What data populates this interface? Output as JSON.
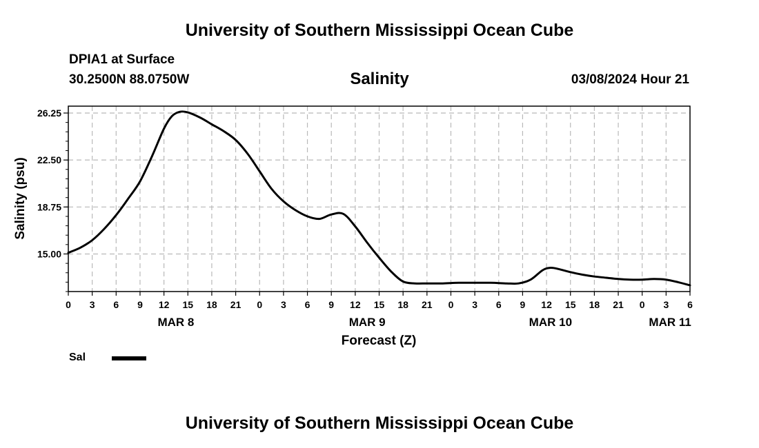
{
  "header": {
    "title": "University of Southern Mississippi Ocean Cube",
    "station": "DPIA1 at Surface",
    "coordinates": "30.2500N  88.0750W",
    "chart_title": "Salinity",
    "datetime": "03/08/2024 Hour 21"
  },
  "footer": {
    "title": "University of Southern Mississippi Ocean Cube"
  },
  "legend": {
    "label": "Sal",
    "color": "#000000"
  },
  "chart_data": {
    "type": "line",
    "title": "Salinity",
    "xlabel": "Forecast (Z)",
    "ylabel": "Salinity (psu)",
    "ylim": [
      12.0,
      26.8
    ],
    "xlim": [
      0,
      78
    ],
    "grid": true,
    "y_ticks": [
      {
        "value": 15.0,
        "label": "15.00"
      },
      {
        "value": 18.75,
        "label": "18.75"
      },
      {
        "value": 22.5,
        "label": "22.50"
      },
      {
        "value": 26.25,
        "label": "26.25"
      }
    ],
    "x_ticks": [
      "0",
      "3",
      "6",
      "9",
      "12",
      "15",
      "18",
      "21",
      "0",
      "3",
      "6",
      "9",
      "12",
      "15",
      "18",
      "21",
      "0",
      "3",
      "6",
      "9",
      "12",
      "15",
      "18",
      "21",
      "0",
      "3",
      "6"
    ],
    "date_labels": [
      {
        "hour": 13.5,
        "label": "MAR 8"
      },
      {
        "hour": 37.5,
        "label": "MAR 9"
      },
      {
        "hour": 60.5,
        "label": "MAR 10"
      },
      {
        "hour": 75.5,
        "label": "MAR 11"
      }
    ],
    "series": [
      {
        "name": "Sal",
        "x": [
          0,
          1.5,
          3,
          4.5,
          6,
          7.5,
          9,
          10.5,
          12,
          13,
          14,
          15,
          16.5,
          18,
          19.5,
          21,
          22.5,
          24,
          25.5,
          27,
          28.5,
          30,
          31.5,
          33,
          34.5,
          36,
          37.5,
          39,
          40.5,
          42,
          43.5,
          45,
          47,
          49,
          51,
          53,
          55,
          56.5,
          58,
          59.5,
          60.5,
          61.5,
          63,
          64.5,
          66,
          67.5,
          69,
          70.5,
          72,
          73.5,
          75,
          76.5,
          78
        ],
        "values": [
          15.1,
          15.5,
          16.1,
          17.0,
          18.1,
          19.4,
          20.8,
          22.8,
          25.0,
          26.0,
          26.35,
          26.3,
          25.9,
          25.35,
          24.8,
          24.1,
          23.0,
          21.6,
          20.2,
          19.2,
          18.5,
          18.0,
          17.8,
          18.15,
          18.2,
          17.2,
          15.9,
          14.7,
          13.6,
          12.8,
          12.65,
          12.65,
          12.65,
          12.7,
          12.7,
          12.7,
          12.65,
          12.65,
          12.95,
          13.7,
          13.9,
          13.8,
          13.55,
          13.35,
          13.2,
          13.1,
          13.0,
          12.95,
          12.95,
          13.0,
          12.95,
          12.75,
          12.5
        ]
      }
    ]
  }
}
